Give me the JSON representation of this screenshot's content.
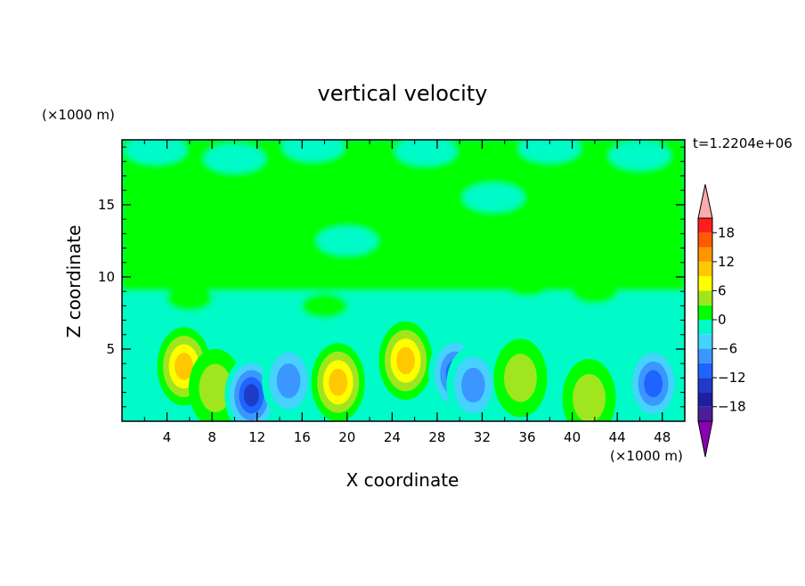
{
  "chart_data": {
    "type": "heatmap",
    "title": "vertical velocity",
    "xlabel": "X coordinate",
    "ylabel": "Z coordinate",
    "x_unit": "(×1000 m)",
    "y_unit": "(×1000 m)",
    "time_label": "t=1.2204e+06",
    "xlim": [
      0,
      50
    ],
    "ylim": [
      0,
      19.5
    ],
    "x_ticks": [
      4,
      8,
      12,
      16,
      20,
      24,
      28,
      32,
      36,
      40,
      44,
      48
    ],
    "y_ticks": [
      5,
      10,
      15
    ],
    "colorbar": {
      "levels": [
        -21,
        -18,
        -15,
        -12,
        -9,
        -6,
        -3,
        0,
        3,
        6,
        9,
        12,
        15,
        18,
        21
      ],
      "tick_labels": [
        18,
        12,
        6,
        0,
        -6,
        -12,
        -18
      ],
      "colors": [
        "#4b1e9e",
        "#1e1ea0",
        "#1e3cc8",
        "#1e64ff",
        "#3c96ff",
        "#46d2ff",
        "#00fac8",
        "#00ff00",
        "#a0e61e",
        "#ffff00",
        "#ffc800",
        "#ff9600",
        "#ff5a00",
        "#ff1e1e"
      ],
      "under_color": "#8c00b4",
      "over_color": "#ffaaaa"
    },
    "features": [
      {
        "x": 5.5,
        "z": 3.8,
        "peak": 13
      },
      {
        "x": 8.3,
        "z": 2.3,
        "peak": 8
      },
      {
        "x": 11.5,
        "z": 1.8,
        "peak": -15
      },
      {
        "x": 14.8,
        "z": 2.8,
        "peak": -9
      },
      {
        "x": 19.2,
        "z": 2.7,
        "peak": 12
      },
      {
        "x": 25.2,
        "z": 4.2,
        "peak": 13
      },
      {
        "x": 29.6,
        "z": 3.3,
        "peak": -12
      },
      {
        "x": 31.2,
        "z": 2.5,
        "peak": -9
      },
      {
        "x": 35.4,
        "z": 3.0,
        "peak": 8
      },
      {
        "x": 41.5,
        "z": 1.6,
        "peak": 7
      },
      {
        "x": 47.2,
        "z": 2.6,
        "peak": -12
      }
    ]
  }
}
